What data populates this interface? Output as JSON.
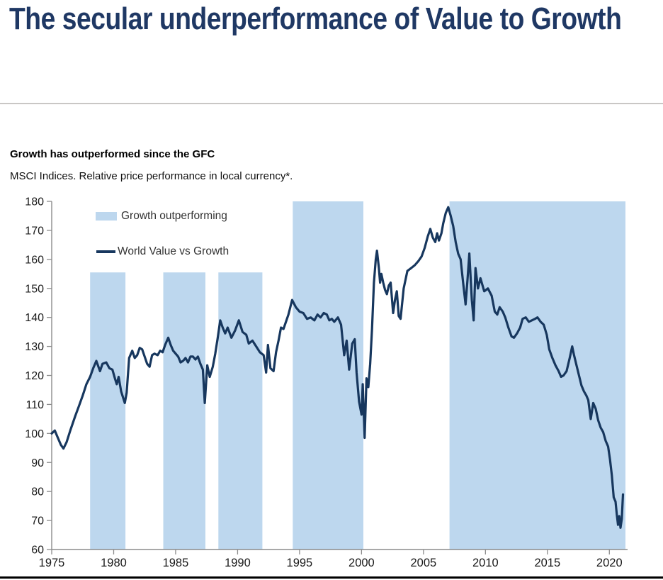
{
  "page": {
    "title": "The secular underperformance of Value to Growth"
  },
  "chart": {
    "heading": "Growth has outperformed since the GFC",
    "subheading": "MSCI Indices. Relative price performance in local currency*.",
    "legend": [
      {
        "label": "Growth outperforming",
        "swatch": "band"
      },
      {
        "label": "World Value vs Growth",
        "swatch": "line"
      }
    ]
  },
  "colors": {
    "title_navy": "#1F3864",
    "line_navy": "#17375E",
    "band_light_blue": "#BDD7EE",
    "axis_gray": "#8C8C8C",
    "text_black": "#1a1a1a",
    "divider_gray": "#C9C7C5"
  },
  "chart_data": {
    "type": "line",
    "title": "Growth has outperformed since the GFC",
    "subtitle": "MSCI Indices. Relative price performance in local currency*.",
    "xlabel": "",
    "ylabel": "",
    "x_range": [
      1975,
      2021.47
    ],
    "y_range": [
      60,
      180
    ],
    "x_ticks": [
      1975,
      1980,
      1985,
      1990,
      1995,
      2000,
      2005,
      2010,
      2015,
      2020
    ],
    "y_ticks": [
      60,
      70,
      80,
      90,
      100,
      110,
      120,
      130,
      140,
      150,
      160,
      170,
      180
    ],
    "grid": false,
    "legend_position": "top-left-inside",
    "band_color": "#BDD7EE",
    "axis_color": "#8C8C8C",
    "bands": [
      {
        "name": "Growth outperforming",
        "from": 1978.1,
        "to": 1980.95,
        "top": 155.5
      },
      {
        "name": "Growth outperforming",
        "from": 1984.0,
        "to": 1987.4,
        "top": 155.5
      },
      {
        "name": "Growth outperforming",
        "from": 1988.45,
        "to": 1992.0,
        "top": 155.5
      },
      {
        "name": "Growth outperforming",
        "from": 1994.45,
        "to": 2000.15,
        "top": 180
      },
      {
        "name": "Growth outperforming",
        "from": 2007.1,
        "to": 2021.3,
        "top": 180
      }
    ],
    "series": [
      {
        "name": "World Value vs Growth",
        "color": "#17375E",
        "points": [
          [
            1975.0,
            100
          ],
          [
            1975.25,
            101
          ],
          [
            1975.5,
            98.5
          ],
          [
            1975.75,
            96
          ],
          [
            1975.95,
            94.8
          ],
          [
            1976.2,
            97
          ],
          [
            1976.5,
            101
          ],
          [
            1976.9,
            106
          ],
          [
            1977.2,
            109.5
          ],
          [
            1977.5,
            113
          ],
          [
            1977.8,
            117
          ],
          [
            1978.1,
            119.5
          ],
          [
            1978.35,
            122.5
          ],
          [
            1978.6,
            125
          ],
          [
            1978.9,
            121.5
          ],
          [
            1979.1,
            124
          ],
          [
            1979.4,
            124.5
          ],
          [
            1979.65,
            122.5
          ],
          [
            1979.9,
            122
          ],
          [
            1980.1,
            119
          ],
          [
            1980.25,
            117
          ],
          [
            1980.4,
            119.5
          ],
          [
            1980.6,
            114.5
          ],
          [
            1980.9,
            110.5
          ],
          [
            1981.05,
            114
          ],
          [
            1981.25,
            126
          ],
          [
            1981.5,
            128.5
          ],
          [
            1981.7,
            126
          ],
          [
            1981.9,
            127
          ],
          [
            1982.1,
            129.5
          ],
          [
            1982.3,
            129
          ],
          [
            1982.5,
            126.5
          ],
          [
            1982.7,
            124
          ],
          [
            1982.9,
            123
          ],
          [
            1983.1,
            127
          ],
          [
            1983.3,
            127.5
          ],
          [
            1983.55,
            127
          ],
          [
            1983.75,
            128.5
          ],
          [
            1983.95,
            128
          ],
          [
            1984.15,
            130.5
          ],
          [
            1984.4,
            133
          ],
          [
            1984.6,
            130.5
          ],
          [
            1984.8,
            128.5
          ],
          [
            1985.0,
            127.5
          ],
          [
            1985.2,
            126.5
          ],
          [
            1985.4,
            124.5
          ],
          [
            1985.6,
            125
          ],
          [
            1985.8,
            126
          ],
          [
            1986.0,
            124.5
          ],
          [
            1986.2,
            126.5
          ],
          [
            1986.4,
            126.5
          ],
          [
            1986.6,
            125.5
          ],
          [
            1986.8,
            126.5
          ],
          [
            1987.0,
            124
          ],
          [
            1987.2,
            122
          ],
          [
            1987.35,
            110.5
          ],
          [
            1987.55,
            123.5
          ],
          [
            1987.75,
            119.5
          ],
          [
            1988.0,
            123
          ],
          [
            1988.2,
            127.5
          ],
          [
            1988.4,
            133
          ],
          [
            1988.6,
            139
          ],
          [
            1988.8,
            136.5
          ],
          [
            1989.0,
            134.5
          ],
          [
            1989.2,
            136.5
          ],
          [
            1989.5,
            133
          ],
          [
            1989.8,
            135.5
          ],
          [
            1990.1,
            139
          ],
          [
            1990.4,
            135
          ],
          [
            1990.7,
            134
          ],
          [
            1990.9,
            131
          ],
          [
            1991.2,
            132
          ],
          [
            1991.5,
            130
          ],
          [
            1991.8,
            128
          ],
          [
            1992.1,
            127
          ],
          [
            1992.3,
            121
          ],
          [
            1992.45,
            130.5
          ],
          [
            1992.65,
            122.5
          ],
          [
            1992.9,
            121.5
          ],
          [
            1993.1,
            128
          ],
          [
            1993.3,
            132
          ],
          [
            1993.5,
            136.5
          ],
          [
            1993.7,
            136
          ],
          [
            1993.9,
            138.5
          ],
          [
            1994.1,
            141
          ],
          [
            1994.4,
            146
          ],
          [
            1994.7,
            143.5
          ],
          [
            1995.0,
            142
          ],
          [
            1995.3,
            141.5
          ],
          [
            1995.6,
            139.5
          ],
          [
            1995.9,
            140
          ],
          [
            1996.2,
            139
          ],
          [
            1996.45,
            141
          ],
          [
            1996.7,
            140
          ],
          [
            1996.95,
            141.5
          ],
          [
            1997.2,
            141
          ],
          [
            1997.4,
            139
          ],
          [
            1997.6,
            139.5
          ],
          [
            1997.8,
            138.5
          ],
          [
            1998.1,
            140
          ],
          [
            1998.35,
            137.5
          ],
          [
            1998.6,
            127
          ],
          [
            1998.8,
            132
          ],
          [
            1999.0,
            122
          ],
          [
            1999.25,
            131
          ],
          [
            1999.45,
            132.5
          ],
          [
            1999.6,
            121
          ],
          [
            1999.8,
            111
          ],
          [
            2000.0,
            106.5
          ],
          [
            2000.1,
            117
          ],
          [
            2000.25,
            98.5
          ],
          [
            2000.4,
            119
          ],
          [
            2000.55,
            116
          ],
          [
            2000.7,
            124
          ],
          [
            2000.85,
            136
          ],
          [
            2001.0,
            152
          ],
          [
            2001.15,
            160
          ],
          [
            2001.25,
            163
          ],
          [
            2001.4,
            157
          ],
          [
            2001.5,
            152
          ],
          [
            2001.6,
            155
          ],
          [
            2001.75,
            152
          ],
          [
            2001.9,
            149.5
          ],
          [
            2002.05,
            148
          ],
          [
            2002.2,
            151
          ],
          [
            2002.35,
            152
          ],
          [
            2002.55,
            141.5
          ],
          [
            2002.7,
            146
          ],
          [
            2002.85,
            149
          ],
          [
            2003.0,
            140.5
          ],
          [
            2003.15,
            139.5
          ],
          [
            2003.4,
            150
          ],
          [
            2003.7,
            156
          ],
          [
            2004.0,
            157
          ],
          [
            2004.3,
            158
          ],
          [
            2004.6,
            159.5
          ],
          [
            2004.85,
            161
          ],
          [
            2005.1,
            164
          ],
          [
            2005.35,
            168
          ],
          [
            2005.55,
            170.5
          ],
          [
            2005.75,
            167.5
          ],
          [
            2005.95,
            166
          ],
          [
            2006.1,
            169
          ],
          [
            2006.25,
            166.5
          ],
          [
            2006.45,
            169
          ],
          [
            2006.6,
            172.5
          ],
          [
            2006.8,
            176
          ],
          [
            2007.0,
            178
          ],
          [
            2007.2,
            175
          ],
          [
            2007.4,
            171.5
          ],
          [
            2007.6,
            166
          ],
          [
            2007.8,
            162
          ],
          [
            2008.0,
            160
          ],
          [
            2008.2,
            152
          ],
          [
            2008.4,
            144.5
          ],
          [
            2008.55,
            153
          ],
          [
            2008.7,
            162
          ],
          [
            2008.9,
            146
          ],
          [
            2009.05,
            139
          ],
          [
            2009.2,
            157
          ],
          [
            2009.4,
            150
          ],
          [
            2009.6,
            153.5
          ],
          [
            2009.9,
            149
          ],
          [
            2010.2,
            150
          ],
          [
            2010.5,
            147.5
          ],
          [
            2010.75,
            142
          ],
          [
            2010.95,
            141
          ],
          [
            2011.15,
            143.5
          ],
          [
            2011.4,
            142
          ],
          [
            2011.6,
            140
          ],
          [
            2011.85,
            136.5
          ],
          [
            2012.1,
            133.5
          ],
          [
            2012.3,
            133
          ],
          [
            2012.55,
            134.5
          ],
          [
            2012.8,
            136.5
          ],
          [
            2013.0,
            139.5
          ],
          [
            2013.25,
            140
          ],
          [
            2013.5,
            138.5
          ],
          [
            2013.75,
            139
          ],
          [
            2014.0,
            139.5
          ],
          [
            2014.2,
            140
          ],
          [
            2014.45,
            138.5
          ],
          [
            2014.7,
            137.5
          ],
          [
            2014.95,
            134
          ],
          [
            2015.15,
            129
          ],
          [
            2015.4,
            126
          ],
          [
            2015.65,
            123.5
          ],
          [
            2015.9,
            121.5
          ],
          [
            2016.1,
            119.5
          ],
          [
            2016.3,
            120
          ],
          [
            2016.55,
            121.5
          ],
          [
            2016.8,
            126
          ],
          [
            2017.0,
            130
          ],
          [
            2017.15,
            127
          ],
          [
            2017.35,
            123.5
          ],
          [
            2017.55,
            120
          ],
          [
            2017.75,
            116.5
          ],
          [
            2017.95,
            114.5
          ],
          [
            2018.15,
            113
          ],
          [
            2018.3,
            111.5
          ],
          [
            2018.5,
            105
          ],
          [
            2018.7,
            110.5
          ],
          [
            2018.9,
            108.5
          ],
          [
            2019.1,
            104.5
          ],
          [
            2019.3,
            102
          ],
          [
            2019.5,
            100.5
          ],
          [
            2019.7,
            97.5
          ],
          [
            2019.9,
            95.5
          ],
          [
            2020.05,
            91
          ],
          [
            2020.2,
            85.5
          ],
          [
            2020.35,
            78
          ],
          [
            2020.5,
            76.5
          ],
          [
            2020.6,
            72
          ],
          [
            2020.7,
            68.5
          ],
          [
            2020.8,
            71.5
          ],
          [
            2020.9,
            67.5
          ],
          [
            2021.0,
            70.5
          ],
          [
            2021.1,
            79
          ]
        ]
      }
    ]
  }
}
